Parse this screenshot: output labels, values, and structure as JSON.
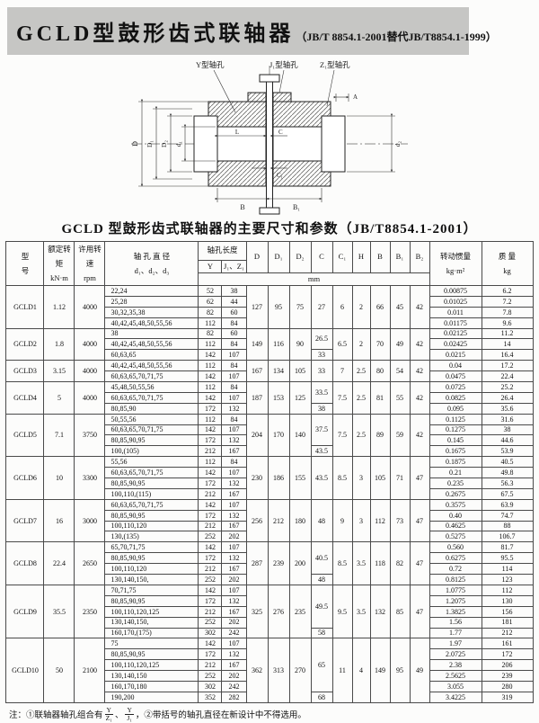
{
  "colors": {
    "header_bg": "#c6c6c4",
    "line": "#333333",
    "paper": "#fcfcfb"
  },
  "header": {
    "title_main": "GCLD型鼓形齿式联轴器",
    "title_sub": "（JB/T 8854.1-2001替代JB/T8854.1-1999）"
  },
  "diagram": {
    "bore_labels": [
      "Y型轴孔",
      "J₁型轴孔",
      "Z₁型轴孔"
    ],
    "dims": {
      "D": "D",
      "D1": "D₁",
      "D2": "D₂",
      "d1": "d₁",
      "d2": "d₂",
      "A": "A",
      "L": "L",
      "C": "C",
      "C1": "C₁",
      "B": "B",
      "B1": "B₁"
    }
  },
  "table": {
    "title": "GCLD 型鼓形齿式联轴器的主要尺寸和参数（JB/T8854.1-2001）",
    "headers": {
      "model": "型\n号",
      "torque": "额定转矩\nkN·m",
      "speed": "许用转速\nrpm",
      "bore_dia": "轴 孔 直 径\nd₁、d₂、d₃",
      "bore_len": "轴孔长度",
      "y": "Y",
      "jz": "J₁、Z₁",
      "dims": [
        "D",
        "D₁",
        "D₂",
        "C",
        "C₁",
        "H",
        "B",
        "B₁",
        "B₂"
      ],
      "mm": "mm",
      "inertia": "转动惯量\nkg·m²",
      "mass": "质  量\nkg"
    },
    "groups": [
      {
        "model": "GCLD1",
        "torque": "1.12",
        "speed": "4000",
        "D": "127",
        "D1": "95",
        "D2": "75",
        "C": [
          {
            "v": "27",
            "span": 4
          }
        ],
        "C1": "6",
        "H": "2",
        "B": "66",
        "B1": "45",
        "B2": "42",
        "rows": [
          {
            "bores": "22,24",
            "y": "52",
            "jz": "38",
            "inertia": "0.00875",
            "mass": "6.2"
          },
          {
            "bores": "25,28",
            "y": "62",
            "jz": "44",
            "inertia": "0.01025",
            "mass": "7.2"
          },
          {
            "bores": "30,32,35,38",
            "y": "82",
            "jz": "60",
            "inertia": "0.011",
            "mass": "7.8"
          },
          {
            "bores": "40,42,45,48,50,55,56",
            "y": "112",
            "jz": "84",
            "inertia": "0.01175",
            "mass": "9.6"
          }
        ]
      },
      {
        "model": "GCLD2",
        "torque": "1.8",
        "speed": "4000",
        "D": "149",
        "D1": "116",
        "D2": "90",
        "C": [
          {
            "v": "26.5",
            "span": 2
          },
          {
            "v": "33",
            "span": 1
          }
        ],
        "C1": "6.5",
        "H": "2",
        "B": "70",
        "B1": "49",
        "B2": "42",
        "rows": [
          {
            "bores": "38",
            "y": "82",
            "jz": "60",
            "inertia": "0.02125",
            "mass": "11.2"
          },
          {
            "bores": "40,42,45,48,50,55,56",
            "y": "112",
            "jz": "84",
            "inertia": "0.02425",
            "mass": "14"
          },
          {
            "bores": "60,63,65",
            "y": "142",
            "jz": "107",
            "inertia": "0.0215",
            "mass": "16.4"
          }
        ]
      },
      {
        "model": "GCLD3",
        "torque": "3.15",
        "speed": "4000",
        "D": "167",
        "D1": "134",
        "D2": "105",
        "C": [
          {
            "v": "33",
            "span": 2
          }
        ],
        "C1": "7",
        "H": "2.5",
        "B": "80",
        "B1": "54",
        "B2": "42",
        "rows": [
          {
            "bores": "40,42,45,48,50,55,56",
            "y": "112",
            "jz": "84",
            "inertia": "0.04",
            "mass": "17.2"
          },
          {
            "bores": "60,63,65,70,71,75",
            "y": "142",
            "jz": "107",
            "inertia": "0.0475",
            "mass": "22.4"
          }
        ]
      },
      {
        "model": "GCLD4",
        "torque": "5",
        "speed": "4000",
        "D": "187",
        "D1": "153",
        "D2": "125",
        "C": [
          {
            "v": "33.5",
            "span": 2
          },
          {
            "v": "38",
            "span": 1
          }
        ],
        "C1": "7.5",
        "H": "2.5",
        "B": "81",
        "B1": "55",
        "B2": "42",
        "rows": [
          {
            "bores": "45,48,50,55,56",
            "y": "112",
            "jz": "84",
            "inertia": "0.0725",
            "mass": "25.2"
          },
          {
            "bores": "60,63,65,70,71,75",
            "y": "142",
            "jz": "107",
            "inertia": "0.0825",
            "mass": "26.4"
          },
          {
            "bores": "80,85,90",
            "y": "172",
            "jz": "132",
            "inertia": "0.095",
            "mass": "35.6"
          }
        ]
      },
      {
        "model": "GCLD5",
        "torque": "7.1",
        "speed": "3750",
        "D": "204",
        "D1": "170",
        "D2": "140",
        "C": [
          {
            "v": "37.5",
            "span": 3
          },
          {
            "v": "43.5",
            "span": 1
          }
        ],
        "C1": "7.5",
        "H": "2.5",
        "B": "89",
        "B1": "59",
        "B2": "42",
        "rows": [
          {
            "bores": "50,55,56",
            "y": "112",
            "jz": "84",
            "inertia": "0.1125",
            "mass": "31.6"
          },
          {
            "bores": "60,63,65,70,71,75",
            "y": "142",
            "jz": "107",
            "inertia": "0.1275",
            "mass": "38"
          },
          {
            "bores": "80,85,90,95",
            "y": "172",
            "jz": "132",
            "inertia": "0.145",
            "mass": "44.6"
          },
          {
            "bores": "100,(105)",
            "y": "212",
            "jz": "167",
            "inertia": "0.1675",
            "mass": "53.9"
          }
        ]
      },
      {
        "model": "GCLD6",
        "torque": "10",
        "speed": "3300",
        "D": "230",
        "D1": "186",
        "D2": "155",
        "C": [
          {
            "v": "43.5",
            "span": 4
          }
        ],
        "C1": "8.5",
        "H": "3",
        "B": "105",
        "B1": "71",
        "B2": "47",
        "rows": [
          {
            "bores": "55,56",
            "y": "112",
            "jz": "84",
            "inertia": "0.1875",
            "mass": "40.5"
          },
          {
            "bores": "60,63,65,70,71,75",
            "y": "142",
            "jz": "107",
            "inertia": "0.21",
            "mass": "49.8"
          },
          {
            "bores": "80,85,90,95",
            "y": "172",
            "jz": "132",
            "inertia": "0.235",
            "mass": "56.3"
          },
          {
            "bores": "100,110,(115)",
            "y": "212",
            "jz": "167",
            "inertia": "0.2675",
            "mass": "67.5"
          }
        ]
      },
      {
        "model": "GCLD7",
        "torque": "16",
        "speed": "3000",
        "D": "256",
        "D1": "212",
        "D2": "180",
        "C": [
          {
            "v": "48",
            "span": 4
          }
        ],
        "C1": "9",
        "H": "3",
        "B": "112",
        "B1": "73",
        "B2": "47",
        "rows": [
          {
            "bores": "60,63,65,70,71,75",
            "y": "142",
            "jz": "107",
            "inertia": "0.3575",
            "mass": "63.9"
          },
          {
            "bores": "80,85,90,95",
            "y": "172",
            "jz": "132",
            "inertia": "0.40",
            "mass": "74.7"
          },
          {
            "bores": "100,110,120",
            "y": "212",
            "jz": "167",
            "inertia": "0.4625",
            "mass": "88"
          },
          {
            "bores": "130,(135)",
            "y": "252",
            "jz": "202",
            "inertia": "0.5275",
            "mass": "106.7"
          }
        ]
      },
      {
        "model": "GCLD8",
        "torque": "22.4",
        "speed": "2650",
        "D": "287",
        "D1": "239",
        "D2": "200",
        "C": [
          {
            "v": "40.5",
            "span": 3
          },
          {
            "v": "48",
            "span": 1
          }
        ],
        "C1": "8.5",
        "H": "3.5",
        "B": "118",
        "B1": "82",
        "B2": "47",
        "rows": [
          {
            "bores": "65,70,71,75",
            "y": "142",
            "jz": "107",
            "inertia": "0.560",
            "mass": "81.7"
          },
          {
            "bores": "80,85,90,95",
            "y": "172",
            "jz": "132",
            "inertia": "0.6275",
            "mass": "95.5"
          },
          {
            "bores": "100,110,120",
            "y": "212",
            "jz": "167",
            "inertia": "0.72",
            "mass": "114"
          },
          {
            "bores": "130,140,150,",
            "y": "252",
            "jz": "202",
            "inertia": "0.8125",
            "mass": "123"
          }
        ]
      },
      {
        "model": "GCLD9",
        "torque": "35.5",
        "speed": "2350",
        "D": "325",
        "D1": "276",
        "D2": "235",
        "C": [
          {
            "v": "49.5",
            "span": 4
          },
          {
            "v": "58",
            "span": 1
          }
        ],
        "C1": "9.5",
        "H": "3.5",
        "B": "132",
        "B1": "85",
        "B2": "47",
        "rows": [
          {
            "bores": "70,71,75",
            "y": "142",
            "jz": "107",
            "inertia": "1.0775",
            "mass": "112"
          },
          {
            "bores": "80,85,90,95",
            "y": "172",
            "jz": "132",
            "inertia": "1.2075",
            "mass": "130"
          },
          {
            "bores": "100,110,120,125",
            "y": "212",
            "jz": "167",
            "inertia": "1.3825",
            "mass": "156"
          },
          {
            "bores": "130,140,150,",
            "y": "252",
            "jz": "202",
            "inertia": "1.56",
            "mass": "181"
          },
          {
            "bores": "160,170,(175)",
            "y": "302",
            "jz": "242",
            "inertia": "1.77",
            "mass": "212"
          }
        ]
      },
      {
        "model": "GCLD10",
        "torque": "50",
        "speed": "2100",
        "D": "362",
        "D1": "313",
        "D2": "270",
        "C": [
          {
            "v": "65",
            "span": 5
          },
          {
            "v": "68",
            "span": 1
          }
        ],
        "C1": "11",
        "H": "4",
        "B": "149",
        "B1": "95",
        "B2": "49",
        "rows": [
          {
            "bores": "75",
            "y": "142",
            "jz": "107",
            "inertia": "1.97",
            "mass": "161"
          },
          {
            "bores": "80,85,90,95",
            "y": "172",
            "jz": "132",
            "inertia": "2.0725",
            "mass": "172"
          },
          {
            "bores": "100,110,120,125",
            "y": "212",
            "jz": "167",
            "inertia": "2.38",
            "mass": "206"
          },
          {
            "bores": "130,140,150",
            "y": "252",
            "jz": "202",
            "inertia": "2.5625",
            "mass": "239"
          },
          {
            "bores": "160,170,180",
            "y": "302",
            "jz": "242",
            "inertia": "3.055",
            "mass": "280"
          },
          {
            "bores": "190,200",
            "y": "352",
            "jz": "282",
            "inertia": "3.4225",
            "mass": "319"
          }
        ]
      }
    ]
  },
  "footnote": {
    "prefix": "注：①联轴器轴孔组合有",
    "f1n": "Y",
    "f1d": "Z₁",
    "sep": "、",
    "f2n": "Y",
    "f2d": "J₁",
    "suffix": "，②带括号的轴孔直径在新设计中不得选用。"
  }
}
